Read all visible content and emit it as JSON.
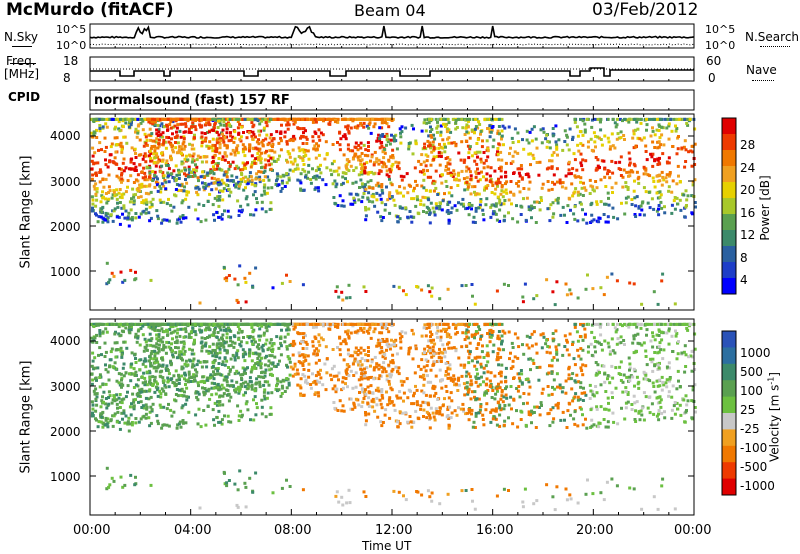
{
  "header": {
    "station": "McMurdo (fitACF)",
    "beam": "Beam 04",
    "date": "03/Feb/2012"
  },
  "top_panels": {
    "nsky_label": "N.Sky",
    "nsearch_label": "N.Search",
    "noise_ticks": [
      "10^5",
      "10^0"
    ],
    "freq_label_line1": "Freq.",
    "freq_label_line2": "[MHz]",
    "freq_ticks": [
      "18",
      "8"
    ],
    "nave_label": "Nave",
    "nave_ticks": [
      "60",
      "0"
    ],
    "cpid_label": "CPID",
    "cpid_value": "normalsound (fast) 157 RF"
  },
  "colorbars": {
    "power": {
      "label": "Power [dB]",
      "ticks": [
        "28",
        "24",
        "20",
        "16",
        "12",
        "8",
        "4"
      ],
      "colors": [
        "#e00000",
        "#ee3a00",
        "#f07800",
        "#f0a020",
        "#e6d000",
        "#a8c82a",
        "#5aa050",
        "#3c8a6a",
        "#2a60a0",
        "#1e3ec8",
        "#0000ff"
      ]
    },
    "velocity": {
      "label": "Velocity [m s",
      "label_sup": "-1",
      "label_end": "]",
      "ticks": [
        "1000",
        "500",
        "100",
        "25",
        "-25",
        "-100",
        "-500",
        "-1000"
      ],
      "colors": [
        "#2a52b8",
        "#2c6fa0",
        "#3c8a6a",
        "#5aa050",
        "#6cc040",
        "#c8c8c8",
        "#f0a020",
        "#f07800",
        "#ee3a00",
        "#e00000"
      ]
    }
  },
  "chart_data": [
    {
      "type": "heatmap",
      "title": "",
      "ylabel": "Slant Range [km]",
      "yticks": [
        "4000",
        "3000",
        "2000",
        "1000"
      ],
      "ylim": [
        180,
        4500
      ],
      "xlim_hours": [
        0,
        24
      ],
      "quantity": "Power [dB]",
      "value_range": [
        2,
        30
      ],
      "grid": false
    },
    {
      "type": "heatmap",
      "title": "",
      "ylabel": "Slant Range [km]",
      "yticks": [
        "4000",
        "3000",
        "2000",
        "1000"
      ],
      "ylim": [
        180,
        4500
      ],
      "xlim_hours": [
        0,
        24
      ],
      "quantity": "Velocity [m s-1]",
      "value_range": [
        -1200,
        1200
      ],
      "grid": false
    }
  ],
  "xaxis": {
    "ticks": [
      "00:00",
      "04:00",
      "08:00",
      "12:00",
      "16:00",
      "20:00",
      "00:00"
    ],
    "label": "Time UT"
  }
}
